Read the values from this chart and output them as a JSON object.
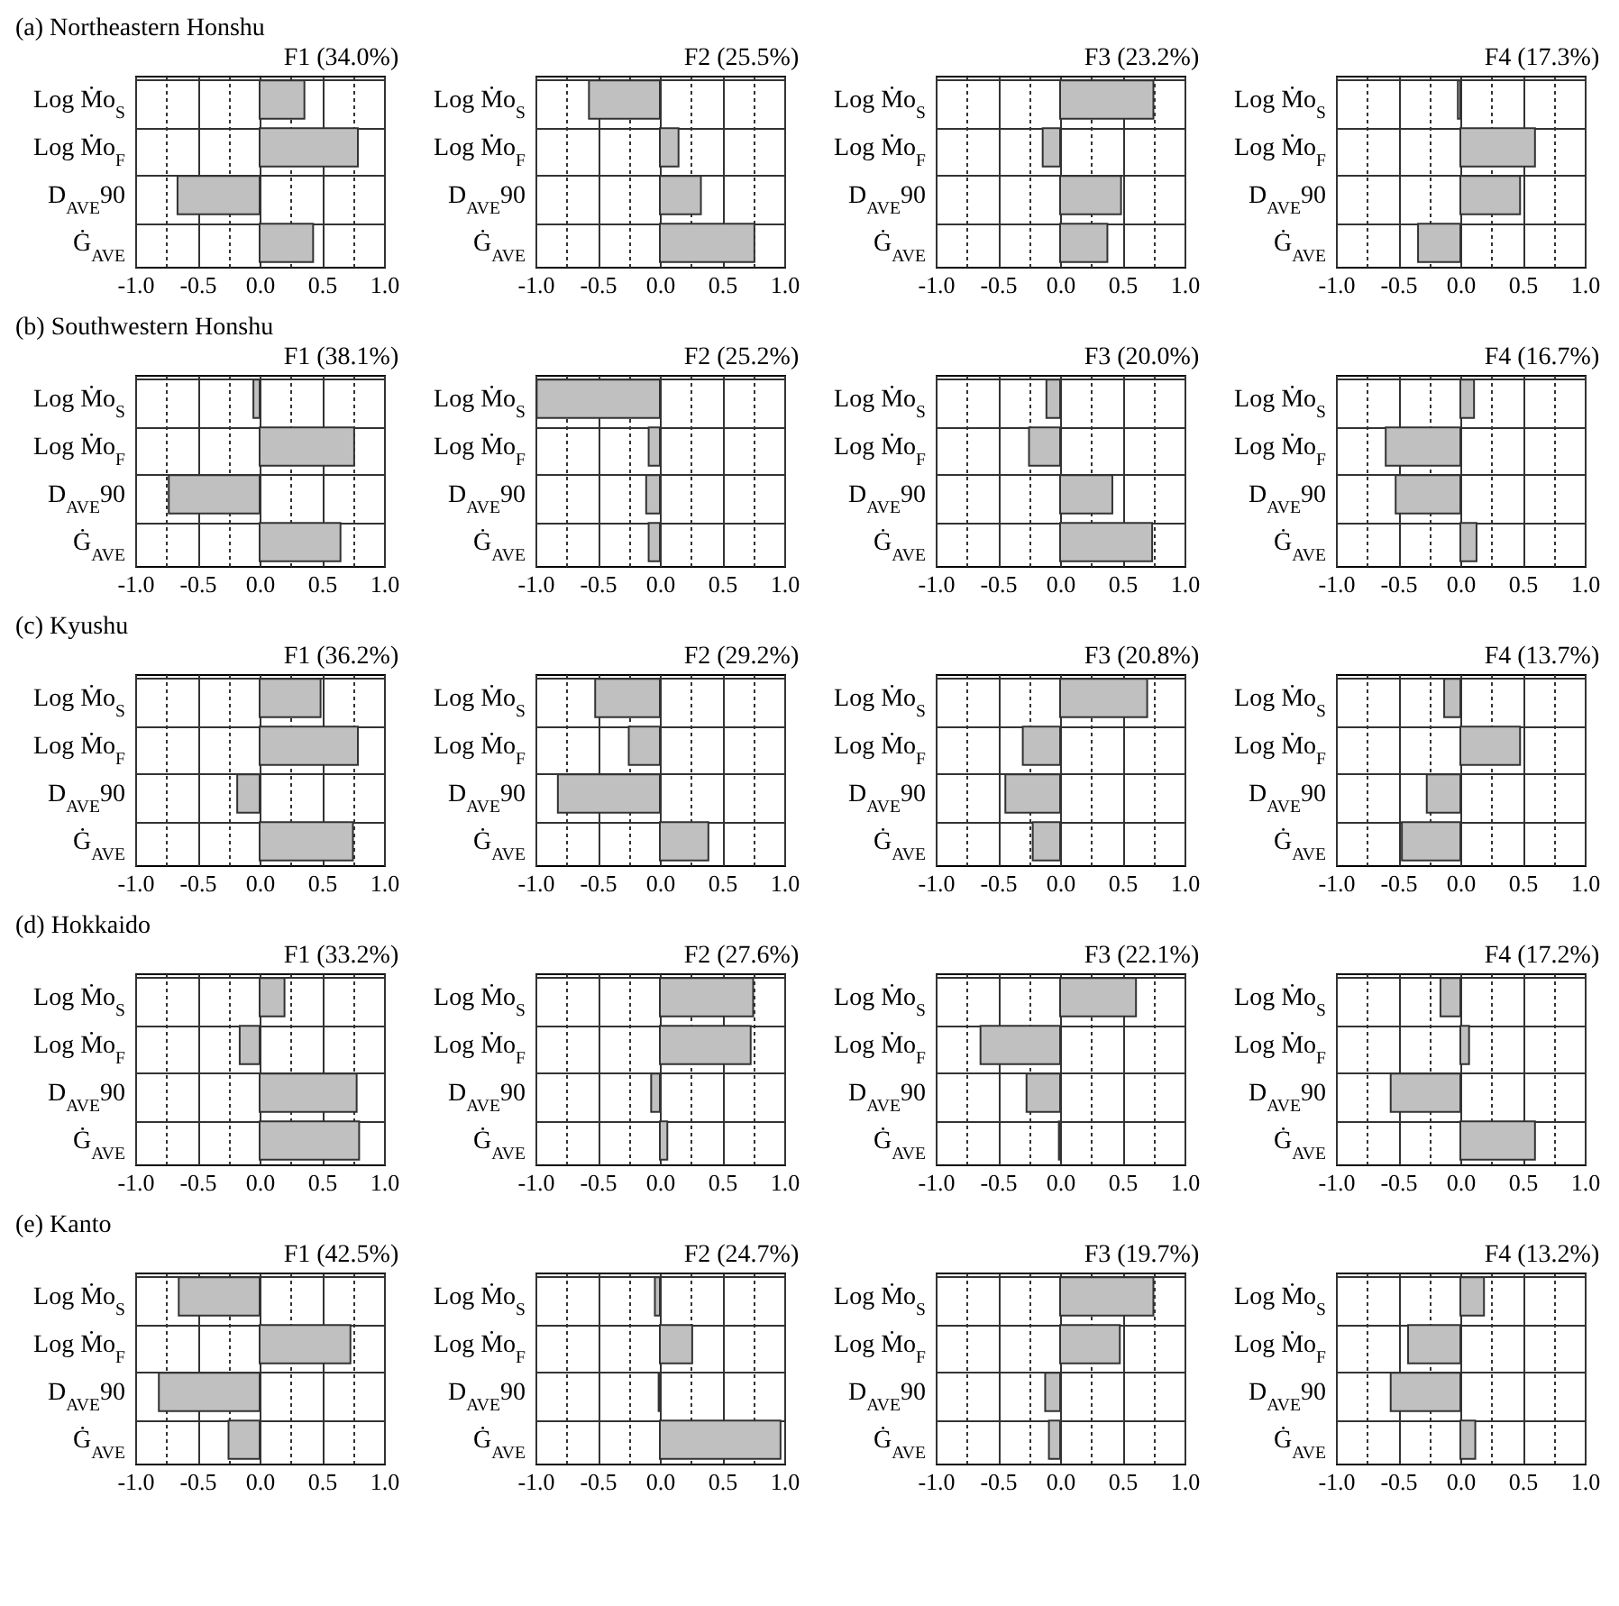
{
  "chart_data": [
    {
      "type": "bar",
      "orientation": "horizontal",
      "annotations": [
        "(a) Northeastern Honshu"
      ],
      "title": "F1 (34.0%)",
      "categories": [
        "Log Ṁo$_{S}$",
        "Log Ṁo$_{F}$",
        "D$_{AVE}$90",
        "Ġ$_{AVE}$"
      ],
      "values": [
        0.36,
        0.79,
        -0.66,
        0.43
      ],
      "color": "#c0c0c0",
      "xlim": [
        -1,
        1
      ],
      "xticks": [
        {
          "value": -1,
          "label": "-1.0"
        },
        {
          "value": -0.75,
          "label": null
        },
        {
          "value": -0.5,
          "label": "-0.5"
        },
        {
          "value": -0.25,
          "label": null
        },
        {
          "value": 0,
          "label": "0.0"
        },
        {
          "value": 0.25,
          "label": null
        },
        {
          "value": 0.5,
          "label": "0.5"
        },
        {
          "value": 0.75,
          "label": null
        },
        {
          "value": 1,
          "label": "1.0"
        }
      ],
      "grid": true
    },
    {
      "type": "bar",
      "orientation": "horizontal",
      "title": "F2 (25.5%)",
      "categories": [
        "Log Ṁo$_{S}$",
        "Log Ṁo$_{F}$",
        "D$_{AVE}$90",
        "Ġ$_{AVE}$"
      ],
      "values": [
        -0.57,
        0.15,
        0.33,
        0.76
      ],
      "color": "#c0c0c0",
      "xlim": [
        -1,
        1
      ],
      "xticks": [
        {
          "value": -1,
          "label": "-1.0"
        },
        {
          "value": -0.75,
          "label": null
        },
        {
          "value": -0.5,
          "label": "-0.5"
        },
        {
          "value": -0.25,
          "label": null
        },
        {
          "value": 0,
          "label": "0.0"
        },
        {
          "value": 0.25,
          "label": null
        },
        {
          "value": 0.5,
          "label": "0.5"
        },
        {
          "value": 0.75,
          "label": null
        },
        {
          "value": 1,
          "label": "1.0"
        }
      ],
      "grid": true
    },
    {
      "type": "bar",
      "orientation": "horizontal",
      "title": "F3 (23.2%)",
      "categories": [
        "Log Ṁo$_{S}$",
        "Log Ṁo$_{F}$",
        "D$_{AVE}$90",
        "Ġ$_{AVE}$"
      ],
      "values": [
        0.75,
        -0.14,
        0.49,
        0.38
      ],
      "color": "#c0c0c0",
      "xlim": [
        -1,
        1
      ],
      "xticks": [
        {
          "value": -1,
          "label": "-1.0"
        },
        {
          "value": -0.75,
          "label": null
        },
        {
          "value": -0.5,
          "label": "-0.5"
        },
        {
          "value": -0.25,
          "label": null
        },
        {
          "value": 0,
          "label": "0.0"
        },
        {
          "value": 0.25,
          "label": null
        },
        {
          "value": 0.5,
          "label": "0.5"
        },
        {
          "value": 0.75,
          "label": null
        },
        {
          "value": 1,
          "label": "1.0"
        }
      ],
      "grid": true
    },
    {
      "type": "bar",
      "orientation": "horizontal",
      "title": "F4 (17.3%)",
      "categories": [
        "Log Ṁo$_{S}$",
        "Log Ṁo$_{F}$",
        "D$_{AVE}$90",
        "Ġ$_{AVE}$"
      ],
      "values": [
        -0.02,
        0.6,
        0.48,
        -0.34
      ],
      "color": "#c0c0c0",
      "xlim": [
        -1,
        1
      ],
      "xticks": [
        {
          "value": -1,
          "label": "-1.0"
        },
        {
          "value": -0.75,
          "label": null
        },
        {
          "value": -0.5,
          "label": "-0.5"
        },
        {
          "value": -0.25,
          "label": null
        },
        {
          "value": 0,
          "label": "0.0"
        },
        {
          "value": 0.25,
          "label": null
        },
        {
          "value": 0.5,
          "label": "0.5"
        },
        {
          "value": 0.75,
          "label": null
        },
        {
          "value": 1,
          "label": "1.0"
        }
      ],
      "grid": true
    },
    {
      "type": "bar",
      "orientation": "horizontal",
      "annotations": [
        "(b) Southwestern Honshu"
      ],
      "title": "F1 (38.1%)",
      "categories": [
        "Log Ṁo$_{S}$",
        "Log Ṁo$_{F}$",
        "D$_{AVE}$90",
        "Ġ$_{AVE}$"
      ],
      "values": [
        -0.05,
        0.76,
        -0.73,
        0.65
      ],
      "color": "#c0c0c0",
      "xlim": [
        -1,
        1
      ],
      "xticks": [
        {
          "value": -1,
          "label": "-1.0"
        },
        {
          "value": -0.75,
          "label": null
        },
        {
          "value": -0.5,
          "label": "-0.5"
        },
        {
          "value": -0.25,
          "label": null
        },
        {
          "value": 0,
          "label": "0.0"
        },
        {
          "value": 0.25,
          "label": null
        },
        {
          "value": 0.5,
          "label": "0.5"
        },
        {
          "value": 0.75,
          "label": null
        },
        {
          "value": 1,
          "label": "1.0"
        }
      ],
      "grid": true
    },
    {
      "type": "bar",
      "orientation": "horizontal",
      "title": "F2 (25.2%)",
      "categories": [
        "Log Ṁo$_{S}$",
        "Log Ṁo$_{F}$",
        "D$_{AVE}$90",
        "Ġ$_{AVE}$"
      ],
      "values": [
        -0.99,
        -0.09,
        -0.11,
        -0.09
      ],
      "color": "#c0c0c0",
      "xlim": [
        -1,
        1
      ],
      "xticks": [
        {
          "value": -1,
          "label": "-1.0"
        },
        {
          "value": -0.75,
          "label": null
        },
        {
          "value": -0.5,
          "label": "-0.5"
        },
        {
          "value": -0.25,
          "label": null
        },
        {
          "value": 0,
          "label": "0.0"
        },
        {
          "value": 0.25,
          "label": null
        },
        {
          "value": 0.5,
          "label": "0.5"
        },
        {
          "value": 0.75,
          "label": null
        },
        {
          "value": 1,
          "label": "1.0"
        }
      ],
      "grid": true
    },
    {
      "type": "bar",
      "orientation": "horizontal",
      "title": "F3 (20.0%)",
      "categories": [
        "Log Ṁo$_{S}$",
        "Log Ṁo$_{F}$",
        "D$_{AVE}$90",
        "Ġ$_{AVE}$"
      ],
      "values": [
        -0.11,
        -0.25,
        0.42,
        0.74
      ],
      "color": "#c0c0c0",
      "xlim": [
        -1,
        1
      ],
      "xticks": [
        {
          "value": -1,
          "label": "-1.0"
        },
        {
          "value": -0.75,
          "label": null
        },
        {
          "value": -0.5,
          "label": "-0.5"
        },
        {
          "value": -0.25,
          "label": null
        },
        {
          "value": 0,
          "label": "0.0"
        },
        {
          "value": 0.25,
          "label": null
        },
        {
          "value": 0.5,
          "label": "0.5"
        },
        {
          "value": 0.75,
          "label": null
        },
        {
          "value": 1,
          "label": "1.0"
        }
      ],
      "grid": true
    },
    {
      "type": "bar",
      "orientation": "horizontal",
      "title": "F4 (16.7%)",
      "categories": [
        "Log Ṁo$_{S}$",
        "Log Ṁo$_{F}$",
        "D$_{AVE}$90",
        "Ġ$_{AVE}$"
      ],
      "values": [
        0.11,
        -0.6,
        -0.52,
        0.13
      ],
      "color": "#c0c0c0",
      "xlim": [
        -1,
        1
      ],
      "xticks": [
        {
          "value": -1,
          "label": "-1.0"
        },
        {
          "value": -0.75,
          "label": null
        },
        {
          "value": -0.5,
          "label": "-0.5"
        },
        {
          "value": -0.25,
          "label": null
        },
        {
          "value": 0,
          "label": "0.0"
        },
        {
          "value": 0.25,
          "label": null
        },
        {
          "value": 0.5,
          "label": "0.5"
        },
        {
          "value": 0.75,
          "label": null
        },
        {
          "value": 1,
          "label": "1.0"
        }
      ],
      "grid": true
    },
    {
      "type": "bar",
      "orientation": "horizontal",
      "annotations": [
        "(c) Kyushu"
      ],
      "title": "F1 (36.2%)",
      "categories": [
        "Log Ṁo$_{S}$",
        "Log Ṁo$_{F}$",
        "D$_{AVE}$90",
        "Ġ$_{AVE}$"
      ],
      "values": [
        0.49,
        0.79,
        -0.18,
        0.75
      ],
      "color": "#c0c0c0",
      "xlim": [
        -1,
        1
      ],
      "xticks": [
        {
          "value": -1,
          "label": "-1.0"
        },
        {
          "value": -0.75,
          "label": null
        },
        {
          "value": -0.5,
          "label": "-0.5"
        },
        {
          "value": -0.25,
          "label": null
        },
        {
          "value": 0,
          "label": "0.0"
        },
        {
          "value": 0.25,
          "label": null
        },
        {
          "value": 0.5,
          "label": "0.5"
        },
        {
          "value": 0.75,
          "label": null
        },
        {
          "value": 1,
          "label": "1.0"
        }
      ],
      "grid": true
    },
    {
      "type": "bar",
      "orientation": "horizontal",
      "title": "F2 (29.2%)",
      "categories": [
        "Log Ṁo$_{S}$",
        "Log Ṁo$_{F}$",
        "D$_{AVE}$90",
        "Ġ$_{AVE}$"
      ],
      "values": [
        -0.52,
        -0.25,
        -0.82,
        0.39
      ],
      "color": "#c0c0c0",
      "xlim": [
        -1,
        1
      ],
      "xticks": [
        {
          "value": -1,
          "label": "-1.0"
        },
        {
          "value": -0.75,
          "label": null
        },
        {
          "value": -0.5,
          "label": "-0.5"
        },
        {
          "value": -0.25,
          "label": null
        },
        {
          "value": 0,
          "label": "0.0"
        },
        {
          "value": 0.25,
          "label": null
        },
        {
          "value": 0.5,
          "label": "0.5"
        },
        {
          "value": 0.75,
          "label": null
        },
        {
          "value": 1,
          "label": "1.0"
        }
      ],
      "grid": true
    },
    {
      "type": "bar",
      "orientation": "horizontal",
      "title": "F3 (20.8%)",
      "categories": [
        "Log Ṁo$_{S}$",
        "Log Ṁo$_{F}$",
        "D$_{AVE}$90",
        "Ġ$_{AVE}$"
      ],
      "values": [
        0.7,
        -0.3,
        -0.44,
        -0.22
      ],
      "color": "#c0c0c0",
      "xlim": [
        -1,
        1
      ],
      "xticks": [
        {
          "value": -1,
          "label": "-1.0"
        },
        {
          "value": -0.75,
          "label": null
        },
        {
          "value": -0.5,
          "label": "-0.5"
        },
        {
          "value": -0.25,
          "label": null
        },
        {
          "value": 0,
          "label": "0.0"
        },
        {
          "value": 0.25,
          "label": null
        },
        {
          "value": 0.5,
          "label": "0.5"
        },
        {
          "value": 0.75,
          "label": null
        },
        {
          "value": 1,
          "label": "1.0"
        }
      ],
      "grid": true
    },
    {
      "type": "bar",
      "orientation": "horizontal",
      "title": "F4 (13.7%)",
      "categories": [
        "Log Ṁo$_{S}$",
        "Log Ṁo$_{F}$",
        "D$_{AVE}$90",
        "Ġ$_{AVE}$"
      ],
      "values": [
        -0.13,
        0.48,
        -0.27,
        -0.47
      ],
      "color": "#c0c0c0",
      "xlim": [
        -1,
        1
      ],
      "xticks": [
        {
          "value": -1,
          "label": "-1.0"
        },
        {
          "value": -0.75,
          "label": null
        },
        {
          "value": -0.5,
          "label": "-0.5"
        },
        {
          "value": -0.25,
          "label": null
        },
        {
          "value": 0,
          "label": "0.0"
        },
        {
          "value": 0.25,
          "label": null
        },
        {
          "value": 0.5,
          "label": "0.5"
        },
        {
          "value": 0.75,
          "label": null
        },
        {
          "value": 1,
          "label": "1.0"
        }
      ],
      "grid": true
    },
    {
      "type": "bar",
      "orientation": "horizontal",
      "annotations": [
        "(d) Hokkaido"
      ],
      "title": "F1 (33.2%)",
      "categories": [
        "Log Ṁo$_{S}$",
        "Log Ṁo$_{F}$",
        "D$_{AVE}$90",
        "Ġ$_{AVE}$"
      ],
      "values": [
        0.2,
        -0.16,
        0.78,
        0.8
      ],
      "color": "#c0c0c0",
      "xlim": [
        -1,
        1
      ],
      "xticks": [
        {
          "value": -1,
          "label": "-1.0"
        },
        {
          "value": -0.75,
          "label": null
        },
        {
          "value": -0.5,
          "label": "-0.5"
        },
        {
          "value": -0.25,
          "label": null
        },
        {
          "value": 0,
          "label": "0.0"
        },
        {
          "value": 0.25,
          "label": null
        },
        {
          "value": 0.5,
          "label": "0.5"
        },
        {
          "value": 0.75,
          "label": null
        },
        {
          "value": 1,
          "label": "1.0"
        }
      ],
      "grid": true
    },
    {
      "type": "bar",
      "orientation": "horizontal",
      "title": "F2 (27.6%)",
      "categories": [
        "Log Ṁo$_{S}$",
        "Log Ṁo$_{F}$",
        "D$_{AVE}$90",
        "Ġ$_{AVE}$"
      ],
      "values": [
        0.75,
        0.73,
        -0.07,
        0.06
      ],
      "color": "#c0c0c0",
      "xlim": [
        -1,
        1
      ],
      "xticks": [
        {
          "value": -1,
          "label": "-1.0"
        },
        {
          "value": -0.75,
          "label": null
        },
        {
          "value": -0.5,
          "label": "-0.5"
        },
        {
          "value": -0.25,
          "label": null
        },
        {
          "value": 0,
          "label": "0.0"
        },
        {
          "value": 0.25,
          "label": null
        },
        {
          "value": 0.5,
          "label": "0.5"
        },
        {
          "value": 0.75,
          "label": null
        },
        {
          "value": 1,
          "label": "1.0"
        }
      ],
      "grid": true
    },
    {
      "type": "bar",
      "orientation": "horizontal",
      "title": "F3 (22.1%)",
      "categories": [
        "Log Ṁo$_{S}$",
        "Log Ṁo$_{F}$",
        "D$_{AVE}$90",
        "Ġ$_{AVE}$"
      ],
      "values": [
        0.61,
        -0.64,
        -0.27,
        -0.01
      ],
      "color": "#c0c0c0",
      "xlim": [
        -1,
        1
      ],
      "xticks": [
        {
          "value": -1,
          "label": "-1.0"
        },
        {
          "value": -0.75,
          "label": null
        },
        {
          "value": -0.5,
          "label": "-0.5"
        },
        {
          "value": -0.25,
          "label": null
        },
        {
          "value": 0,
          "label": "0.0"
        },
        {
          "value": 0.25,
          "label": null
        },
        {
          "value": 0.5,
          "label": "0.5"
        },
        {
          "value": 0.75,
          "label": null
        },
        {
          "value": 1,
          "label": "1.0"
        }
      ],
      "grid": true
    },
    {
      "type": "bar",
      "orientation": "horizontal",
      "title": "F4 (17.2%)",
      "categories": [
        "Log Ṁo$_{S}$",
        "Log Ṁo$_{F}$",
        "D$_{AVE}$90",
        "Ġ$_{AVE}$"
      ],
      "values": [
        -0.16,
        0.07,
        -0.56,
        0.6
      ],
      "color": "#c0c0c0",
      "xlim": [
        -1,
        1
      ],
      "xticks": [
        {
          "value": -1,
          "label": "-1.0"
        },
        {
          "value": -0.75,
          "label": null
        },
        {
          "value": -0.5,
          "label": "-0.5"
        },
        {
          "value": -0.25,
          "label": null
        },
        {
          "value": 0,
          "label": "0.0"
        },
        {
          "value": 0.25,
          "label": null
        },
        {
          "value": 0.5,
          "label": "0.5"
        },
        {
          "value": 0.75,
          "label": null
        },
        {
          "value": 1,
          "label": "1.0"
        }
      ],
      "grid": true
    },
    {
      "type": "bar",
      "orientation": "horizontal",
      "annotations": [
        "(e) Kanto"
      ],
      "title": "F1 (42.5%)",
      "categories": [
        "Log Ṁo$_{S}$",
        "Log Ṁo$_{F}$",
        "D$_{AVE}$90",
        "Ġ$_{AVE}$"
      ],
      "values": [
        -0.65,
        0.73,
        -0.81,
        -0.25
      ],
      "color": "#c0c0c0",
      "xlim": [
        -1,
        1
      ],
      "xticks": [
        {
          "value": -1,
          "label": "-1.0"
        },
        {
          "value": -0.75,
          "label": null
        },
        {
          "value": -0.5,
          "label": "-0.5"
        },
        {
          "value": -0.25,
          "label": null
        },
        {
          "value": 0,
          "label": "0.0"
        },
        {
          "value": 0.25,
          "label": null
        },
        {
          "value": 0.5,
          "label": "0.5"
        },
        {
          "value": 0.75,
          "label": null
        },
        {
          "value": 1,
          "label": "1.0"
        }
      ],
      "grid": true
    },
    {
      "type": "bar",
      "orientation": "horizontal",
      "title": "F2 (24.7%)",
      "categories": [
        "Log Ṁo$_{S}$",
        "Log Ṁo$_{F}$",
        "D$_{AVE}$90",
        "Ġ$_{AVE}$"
      ],
      "values": [
        -0.04,
        0.26,
        -0.01,
        0.97
      ],
      "color": "#c0c0c0",
      "xlim": [
        -1,
        1
      ],
      "xticks": [
        {
          "value": -1,
          "label": "-1.0"
        },
        {
          "value": -0.75,
          "label": null
        },
        {
          "value": -0.5,
          "label": "-0.5"
        },
        {
          "value": -0.25,
          "label": null
        },
        {
          "value": 0,
          "label": "0.0"
        },
        {
          "value": 0.25,
          "label": null
        },
        {
          "value": 0.5,
          "label": "0.5"
        },
        {
          "value": 0.75,
          "label": null
        },
        {
          "value": 1,
          "label": "1.0"
        }
      ],
      "grid": true
    },
    {
      "type": "bar",
      "orientation": "horizontal",
      "title": "F3 (19.7%)",
      "categories": [
        "Log Ṁo$_{S}$",
        "Log Ṁo$_{F}$",
        "D$_{AVE}$90",
        "Ġ$_{AVE}$"
      ],
      "values": [
        0.75,
        0.48,
        -0.12,
        -0.09
      ],
      "color": "#c0c0c0",
      "xlim": [
        -1,
        1
      ],
      "xticks": [
        {
          "value": -1,
          "label": "-1.0"
        },
        {
          "value": -0.75,
          "label": null
        },
        {
          "value": -0.5,
          "label": "-0.5"
        },
        {
          "value": -0.25,
          "label": null
        },
        {
          "value": 0,
          "label": "0.0"
        },
        {
          "value": 0.25,
          "label": null
        },
        {
          "value": 0.5,
          "label": "0.5"
        },
        {
          "value": 0.75,
          "label": null
        },
        {
          "value": 1,
          "label": "1.0"
        }
      ],
      "grid": true
    },
    {
      "type": "bar",
      "orientation": "horizontal",
      "title": "F4 (13.2%)",
      "categories": [
        "Log Ṁo$_{S}$",
        "Log Ṁo$_{F}$",
        "D$_{AVE}$90",
        "Ġ$_{AVE}$"
      ],
      "values": [
        0.19,
        -0.42,
        -0.56,
        0.12
      ],
      "color": "#c0c0c0",
      "xlim": [
        -1,
        1
      ],
      "xticks": [
        {
          "value": -1,
          "label": "-1.0"
        },
        {
          "value": -0.75,
          "label": null
        },
        {
          "value": -0.5,
          "label": "-0.5"
        },
        {
          "value": -0.25,
          "label": null
        },
        {
          "value": 0,
          "label": "0.0"
        },
        {
          "value": 0.25,
          "label": null
        },
        {
          "value": 0.5,
          "label": "0.5"
        },
        {
          "value": 0.75,
          "label": null
        },
        {
          "value": 1,
          "label": "1.0"
        }
      ],
      "grid": true
    }
  ]
}
